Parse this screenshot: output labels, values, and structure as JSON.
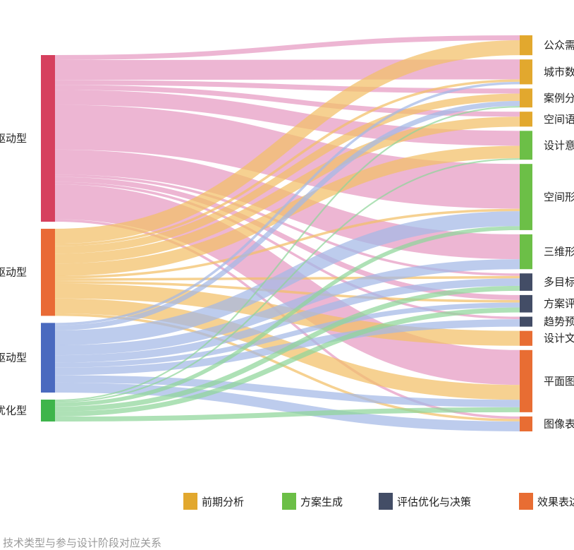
{
  "chart_data": {
    "type": "sankey",
    "sources": [
      {
        "id": "s1",
        "label": "驱动型",
        "color": "#d6405e"
      },
      {
        "id": "s2",
        "label": "驱动型",
        "color": "#e96a35"
      },
      {
        "id": "s3",
        "label": "驱动型",
        "color": "#4a6abf"
      },
      {
        "id": "s4",
        "label": "优化型",
        "color": "#3eb54b"
      }
    ],
    "targets": [
      {
        "id": "t1",
        "label": "公众需",
        "stage": "前期分析"
      },
      {
        "id": "t2",
        "label": "城市数",
        "stage": "前期分析"
      },
      {
        "id": "t3",
        "label": "案例分",
        "stage": "前期分析"
      },
      {
        "id": "t4",
        "label": "空间语",
        "stage": "前期分析"
      },
      {
        "id": "t5",
        "label": "设计意",
        "stage": "方案生成"
      },
      {
        "id": "t6",
        "label": "空间形",
        "stage": "方案生成"
      },
      {
        "id": "t7",
        "label": "三维形",
        "stage": "方案生成"
      },
      {
        "id": "t8",
        "label": "多目标",
        "stage": "评估优化与决策"
      },
      {
        "id": "t9",
        "label": "方案评",
        "stage": "评估优化与决策"
      },
      {
        "id": "t10",
        "label": "趋势预",
        "stage": "评估优化与决策"
      },
      {
        "id": "t11",
        "label": "设计文",
        "stage": "效果表达"
      },
      {
        "id": "t12",
        "label": "平面图",
        "stage": "效果表达"
      },
      {
        "id": "t13",
        "label": "图像表",
        "stage": "效果表达"
      }
    ],
    "links": [
      {
        "source": "s1",
        "target": "t1",
        "value": 1
      },
      {
        "source": "s1",
        "target": "t2",
        "value": 4
      },
      {
        "source": "s1",
        "target": "t3",
        "value": 1
      },
      {
        "source": "s1",
        "target": "t4",
        "value": 1
      },
      {
        "source": "s1",
        "target": "t5",
        "value": 3
      },
      {
        "source": "s1",
        "target": "t6",
        "value": 9
      },
      {
        "source": "s1",
        "target": "t7",
        "value": 5
      },
      {
        "source": "s1",
        "target": "t8",
        "value": 0.5
      },
      {
        "source": "s1",
        "target": "t9",
        "value": 1
      },
      {
        "source": "s1",
        "target": "t10",
        "value": 0.5
      },
      {
        "source": "s1",
        "target": "t12",
        "value": 7
      },
      {
        "source": "s1",
        "target": "t13",
        "value": 0.5
      },
      {
        "source": "s2",
        "target": "t1",
        "value": 3
      },
      {
        "source": "s2",
        "target": "t2",
        "value": 0.5
      },
      {
        "source": "s2",
        "target": "t3",
        "value": 1.5
      },
      {
        "source": "s2",
        "target": "t4",
        "value": 2
      },
      {
        "source": "s2",
        "target": "t5",
        "value": 2.5
      },
      {
        "source": "s2",
        "target": "t6",
        "value": 0.5
      },
      {
        "source": "s2",
        "target": "t8",
        "value": 0.5
      },
      {
        "source": "s2",
        "target": "t9",
        "value": 0.5
      },
      {
        "source": "s2",
        "target": "t11",
        "value": 3
      },
      {
        "source": "s2",
        "target": "t12",
        "value": 3
      },
      {
        "source": "s2",
        "target": "t13",
        "value": 0.5
      },
      {
        "source": "s3",
        "target": "t2",
        "value": 0.5
      },
      {
        "source": "s3",
        "target": "t3",
        "value": 1
      },
      {
        "source": "s3",
        "target": "t6",
        "value": 3
      },
      {
        "source": "s3",
        "target": "t7",
        "value": 2
      },
      {
        "source": "s3",
        "target": "t8",
        "value": 1.5
      },
      {
        "source": "s3",
        "target": "t9",
        "value": 1
      },
      {
        "source": "s3",
        "target": "t10",
        "value": 1.5
      },
      {
        "source": "s3",
        "target": "t12",
        "value": 1.5
      },
      {
        "source": "s3",
        "target": "t13",
        "value": 2
      },
      {
        "source": "s4",
        "target": "t3",
        "value": 0.3
      },
      {
        "source": "s4",
        "target": "t5",
        "value": 0.3
      },
      {
        "source": "s4",
        "target": "t6",
        "value": 0.8
      },
      {
        "source": "s4",
        "target": "t8",
        "value": 1
      },
      {
        "source": "s4",
        "target": "t9",
        "value": 1
      },
      {
        "source": "s4",
        "target": "t12",
        "value": 1
      }
    ],
    "stage_colors": {
      "前期分析": "#e2a82e",
      "方案生成": "#6cbf47",
      "评估优化与决策": "#434d66",
      "效果表达": "#e86d33"
    },
    "link_colors": {
      "s1": "#e69ac2",
      "s2": "#f2bf66",
      "s3": "#a4b9e6",
      "s4": "#8fd69a"
    }
  },
  "legend": [
    {
      "label": "前期分析",
      "color": "#e2a82e"
    },
    {
      "label": "方案生成",
      "color": "#6cbf47"
    },
    {
      "label": "评估优化与决策",
      "color": "#434d66"
    },
    {
      "label": "效果表达",
      "color": "#e86d33"
    }
  ],
  "caption": "技术类型与参与设计阶段对应关系"
}
